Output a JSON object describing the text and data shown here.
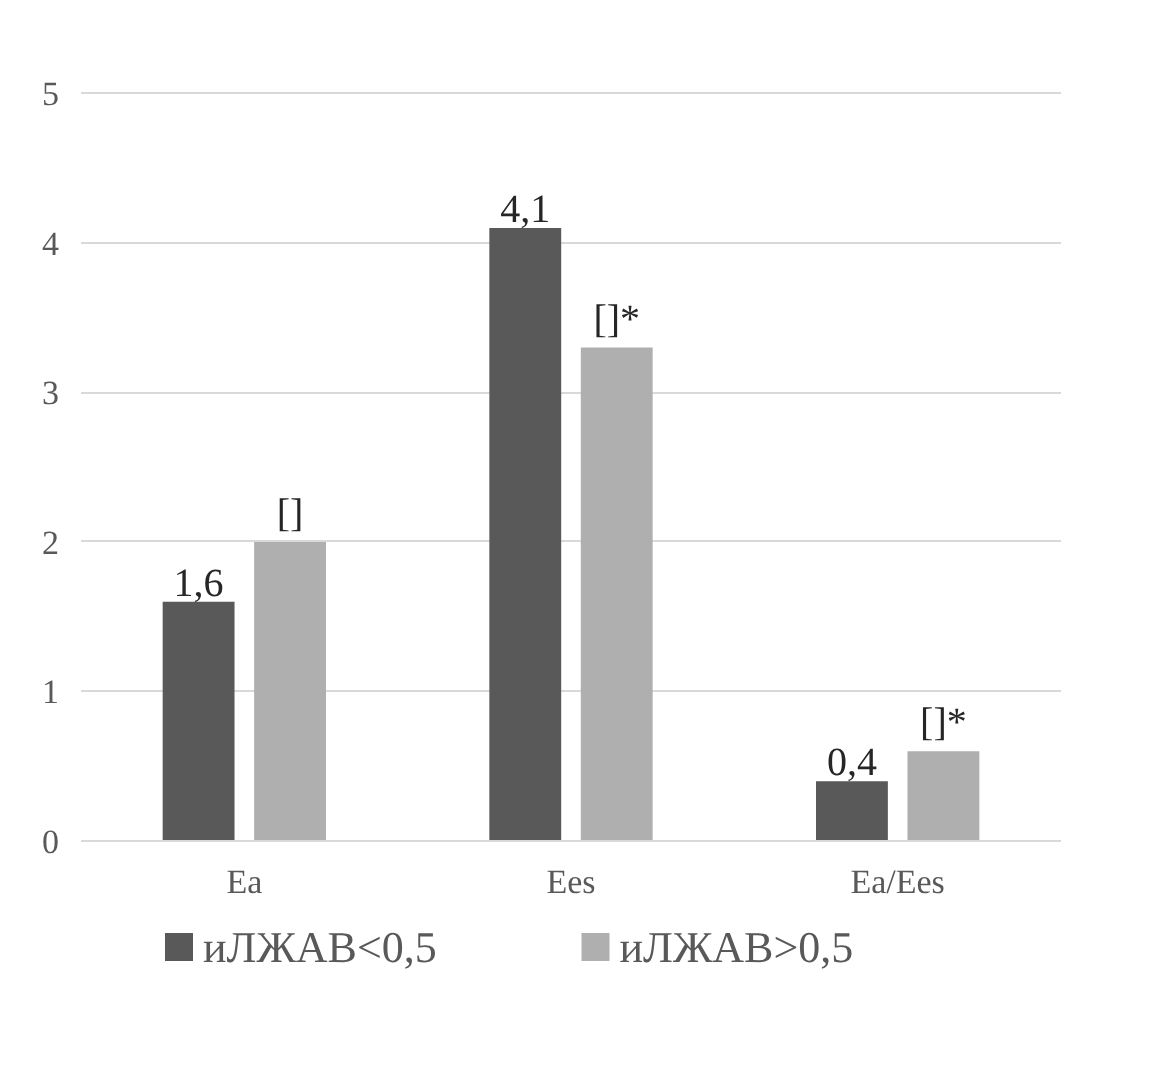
{
  "chart_data": {
    "type": "bar",
    "categories": [
      "Ea",
      "Ees",
      "Ea/Ees"
    ],
    "series": [
      {
        "name": "иЛЖАВ<0,5",
        "color": "#595959",
        "values": [
          1.6,
          4.1,
          0.4
        ],
        "value_labels": [
          "1,6",
          "4,1",
          "0,4"
        ]
      },
      {
        "name": "иЛЖАВ>0,5",
        "color": "#afafaf",
        "values": [
          2.0,
          3.3,
          0.6
        ],
        "value_labels": [
          "[]",
          "[]*",
          "[]*"
        ]
      }
    ],
    "ylim": [
      0,
      5
    ],
    "yticks": [
      0,
      1,
      2,
      3,
      4,
      5
    ],
    "grid": "y",
    "legend": "bottom"
  }
}
